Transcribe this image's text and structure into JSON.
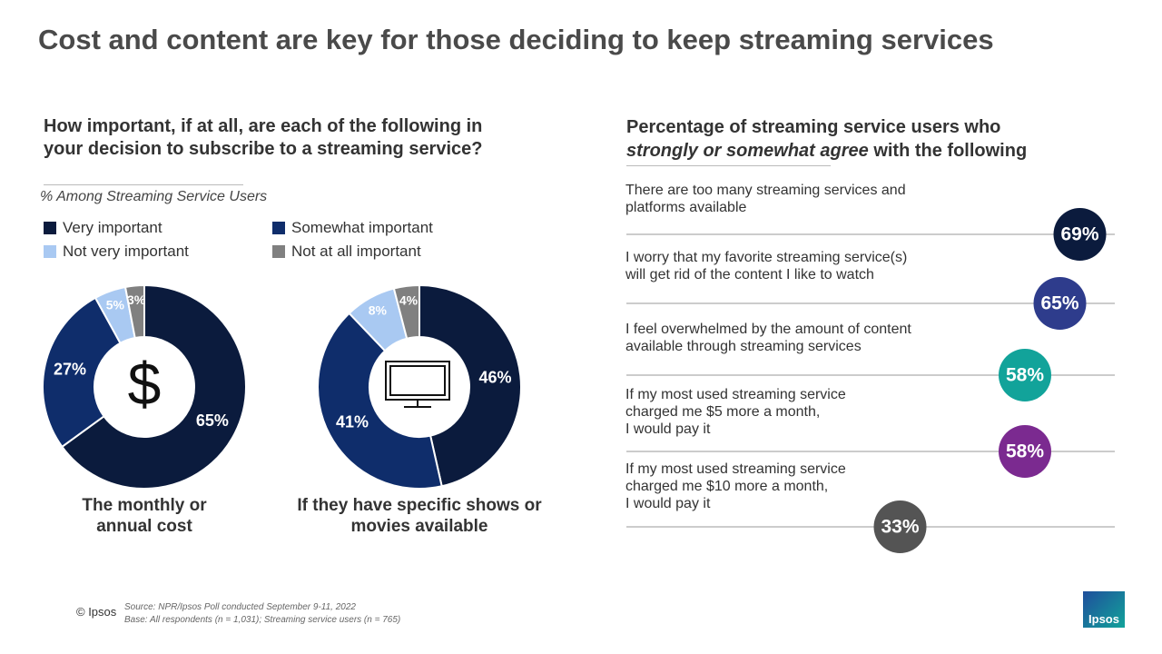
{
  "title": "Cost and content are key for those deciding to keep streaming services",
  "left_panel": {
    "question": "How important, if at all, are each of the following in your decision to subscribe to a streaming service?",
    "note": "% Among Streaming Service Users"
  },
  "legend": {
    "categories": [
      "Very important",
      "Somewhat important",
      "Not very important",
      "Not at all important"
    ],
    "colors": [
      "#0b1b3d",
      "#0f2d6b",
      "#a9c9f2",
      "#808080"
    ]
  },
  "chart_data": [
    {
      "type": "donut",
      "title": "The monthly or annual cost",
      "values": [
        65,
        27,
        5,
        3
      ],
      "value_labels": [
        "65%",
        "27%",
        "5%",
        "3%"
      ]
    },
    {
      "type": "donut",
      "title": "If they have specific shows or movies available",
      "values": [
        46,
        41,
        8,
        4
      ],
      "value_labels": [
        "46%",
        "41%",
        "8%",
        "4%"
      ]
    },
    {
      "type": "dot",
      "title_parts": [
        "Percentage of streaming service users who",
        "strongly or somewhat agree",
        "with the following"
      ],
      "categories": [
        "There are too many streaming services and\nplatforms available",
        "I worry that my favorite streaming service(s)\nwill get rid of the content I like to watch",
        "I feel overwhelmed by the amount of content\navailable through streaming services",
        "If my most used streaming service\ncharged me $5 more a month,\nI would pay it",
        "If my most used streaming service\ncharged me $10 more a month,\nI would pay it"
      ],
      "values": [
        69,
        65,
        58,
        58,
        33
      ],
      "value_labels": [
        "69%",
        "65%",
        "58%",
        "58%",
        "33%"
      ],
      "colors": [
        "#0b1b3d",
        "#2e3c8c",
        "#12a39a",
        "#7b2a90",
        "#545454"
      ]
    }
  ],
  "footer": {
    "copyright": "© Ipsos",
    "source": "Source: NPR/Ipsos Poll conducted September 9-11, 2022",
    "base": "Base: All respondents (n = 1,031); Streaming service users (n = 765)",
    "logo": "Ipsos"
  }
}
